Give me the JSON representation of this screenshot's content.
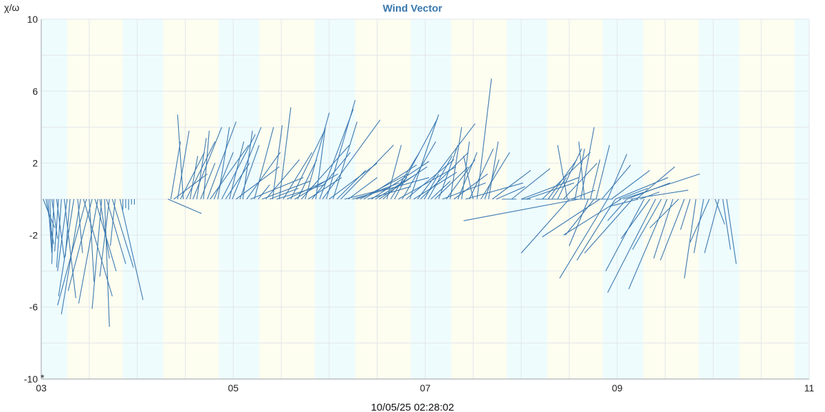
{
  "colors": {
    "vector": "#3a78b0",
    "title": "#3a78b0",
    "grid": "#e2e6ea",
    "day_band": "#fdfdf0",
    "night_band": "#eefcfd",
    "axis": "#9aa0a6"
  },
  "chart_data": {
    "type": "vector",
    "title": "Wind Vector",
    "ylabel": "χ/ω",
    "xlabel": "",
    "x_ticks": [
      "03",
      "05",
      "07",
      "09",
      "11"
    ],
    "x_tick_values": [
      3,
      5,
      7,
      9,
      11
    ],
    "y_ticks": [
      "10",
      "6",
      "2",
      "-2",
      "-6",
      "-10"
    ],
    "y_tick_values": [
      10,
      6,
      2,
      -2,
      -6,
      -10
    ],
    "xlim": [
      3,
      11
    ],
    "ylim": [
      -10,
      10
    ],
    "grid": true,
    "bands": [
      {
        "from": 3.0,
        "to": 3.27,
        "kind": "night"
      },
      {
        "from": 3.27,
        "to": 3.85,
        "kind": "day"
      },
      {
        "from": 3.85,
        "to": 4.27,
        "kind": "night"
      },
      {
        "from": 4.27,
        "to": 4.85,
        "kind": "day"
      },
      {
        "from": 4.85,
        "to": 5.27,
        "kind": "night"
      },
      {
        "from": 5.27,
        "to": 5.85,
        "kind": "day"
      },
      {
        "from": 5.85,
        "to": 6.27,
        "kind": "night"
      },
      {
        "from": 6.27,
        "to": 6.85,
        "kind": "day"
      },
      {
        "from": 6.85,
        "to": 7.27,
        "kind": "night"
      },
      {
        "from": 7.27,
        "to": 7.85,
        "kind": "day"
      },
      {
        "from": 7.85,
        "to": 8.27,
        "kind": "night"
      },
      {
        "from": 8.27,
        "to": 8.85,
        "kind": "day"
      },
      {
        "from": 8.85,
        "to": 9.27,
        "kind": "night"
      },
      {
        "from": 9.27,
        "to": 9.85,
        "kind": "day"
      },
      {
        "from": 9.85,
        "to": 10.27,
        "kind": "night"
      },
      {
        "from": 10.27,
        "to": 10.85,
        "kind": "day"
      },
      {
        "from": 10.85,
        "to": 11.0,
        "kind": "night"
      }
    ],
    "vectors": [
      {
        "x": 3.02,
        "dx": 0.12,
        "dy": -1.6
      },
      {
        "x": 3.05,
        "dx": 0.08,
        "dy": -2.5
      },
      {
        "x": 3.07,
        "dx": 0.04,
        "dy": -3.0
      },
      {
        "x": 3.09,
        "dx": 0.02,
        "dy": -2.7
      },
      {
        "x": 3.11,
        "dx": 0.06,
        "dy": -2.2
      },
      {
        "x": 3.13,
        "dx": -0.02,
        "dy": -3.6
      },
      {
        "x": 3.16,
        "dx": 0.08,
        "dy": -3.3
      },
      {
        "x": 3.18,
        "dx": -0.04,
        "dy": -2.9
      },
      {
        "x": 3.21,
        "dx": -0.05,
        "dy": -3.8
      },
      {
        "x": 3.24,
        "dx": 0.12,
        "dy": -5.5
      },
      {
        "x": 3.27,
        "dx": -0.1,
        "dy": -4.0
      },
      {
        "x": 3.3,
        "dx": -0.05,
        "dy": -3.2
      },
      {
        "x": 3.34,
        "dx": -0.16,
        "dy": -5.4
      },
      {
        "x": 3.38,
        "dx": 0.05,
        "dy": -3.0
      },
      {
        "x": 3.41,
        "dx": -0.2,
        "dy": -6.4
      },
      {
        "x": 3.44,
        "dx": 0.3,
        "dy": -5.4
      },
      {
        "x": 3.47,
        "dx": -0.3,
        "dy": -5.9
      },
      {
        "x": 3.5,
        "dx": 0.05,
        "dy": -4.6
      },
      {
        "x": 3.53,
        "dx": -0.25,
        "dy": -5.1
      },
      {
        "x": 3.56,
        "dx": 0.22,
        "dy": -4.0
      },
      {
        "x": 3.59,
        "dx": -0.2,
        "dy": -5.8
      },
      {
        "x": 3.61,
        "dx": 0.1,
        "dy": -3.3
      },
      {
        "x": 3.63,
        "dx": -0.1,
        "dy": -6.1
      },
      {
        "x": 3.66,
        "dx": 0.05,
        "dy": -7.1
      },
      {
        "x": 3.68,
        "dx": 0.2,
        "dy": -3.6
      },
      {
        "x": 3.71,
        "dx": -0.1,
        "dy": -4.3
      },
      {
        "x": 3.74,
        "dx": 0.22,
        "dy": -3.8
      },
      {
        "x": 3.77,
        "dx": -0.05,
        "dy": -2.6
      },
      {
        "x": 3.82,
        "dx": 0.24,
        "dy": -5.6
      },
      {
        "x": 3.85,
        "dx": 0.0,
        "dy": -0.6
      },
      {
        "x": 3.88,
        "dx": 0.0,
        "dy": -0.5
      },
      {
        "x": 3.91,
        "dx": 0.0,
        "dy": -0.6
      },
      {
        "x": 3.94,
        "dx": 0.0,
        "dy": -0.3
      },
      {
        "x": 3.97,
        "dx": 0.0,
        "dy": -0.3
      },
      {
        "x": 4.32,
        "dx": 0.35,
        "dy": -0.8
      },
      {
        "x": 4.35,
        "dx": 0.1,
        "dy": 3.2
      },
      {
        "x": 4.38,
        "dx": 0.35,
        "dy": 1.4
      },
      {
        "x": 4.42,
        "dx": 0.12,
        "dy": 3.8
      },
      {
        "x": 4.45,
        "dx": 0.25,
        "dy": 2.6
      },
      {
        "x": 4.48,
        "dx": -0.06,
        "dy": 4.7
      },
      {
        "x": 4.51,
        "dx": 0.3,
        "dy": 3.2
      },
      {
        "x": 4.55,
        "dx": 0.08,
        "dy": 2.4
      },
      {
        "x": 4.58,
        "dx": 0.3,
        "dy": 4.0
      },
      {
        "x": 4.62,
        "dx": 0.1,
        "dy": 3.4
      },
      {
        "x": 4.66,
        "dx": 0.15,
        "dy": 2.0
      },
      {
        "x": 4.69,
        "dx": 0.06,
        "dy": 3.8
      },
      {
        "x": 4.73,
        "dx": 0.3,
        "dy": 4.3
      },
      {
        "x": 4.76,
        "dx": 0.4,
        "dy": 3.0
      },
      {
        "x": 4.8,
        "dx": 0.2,
        "dy": 2.6
      },
      {
        "x": 4.84,
        "dx": 0.12,
        "dy": 4.0
      },
      {
        "x": 4.88,
        "dx": 0.35,
        "dy": 3.6
      },
      {
        "x": 4.92,
        "dx": 0.25,
        "dy": 2.0
      },
      {
        "x": 4.96,
        "dx": 0.15,
        "dy": 3.2
      },
      {
        "x": 4.99,
        "dx": 0.3,
        "dy": 4.0
      },
      {
        "x": 5.03,
        "dx": 0.45,
        "dy": 1.8
      },
      {
        "x": 5.07,
        "dx": 0.2,
        "dy": 3.0
      },
      {
        "x": 5.1,
        "dx": 0.1,
        "dy": 3.8
      },
      {
        "x": 5.14,
        "dx": 0.35,
        "dy": 2.6
      },
      {
        "x": 5.18,
        "dx": 0.55,
        "dy": 1.2
      },
      {
        "x": 5.22,
        "dx": 0.2,
        "dy": 4.0
      },
      {
        "x": 5.26,
        "dx": 0.12,
        "dy": 0.8
      },
      {
        "x": 5.3,
        "dx": 0.5,
        "dy": 1.0
      },
      {
        "x": 5.34,
        "dx": 0.35,
        "dy": 2.2
      },
      {
        "x": 5.38,
        "dx": 0.3,
        "dy": 0.6
      },
      {
        "x": 5.41,
        "dx": 0.1,
        "dy": 4.1
      },
      {
        "x": 5.45,
        "dx": 0.5,
        "dy": 0.8
      },
      {
        "x": 5.48,
        "dx": 0.12,
        "dy": 5.1
      },
      {
        "x": 5.52,
        "dx": 0.3,
        "dy": 2.6
      },
      {
        "x": 5.56,
        "dx": 0.4,
        "dy": 1.0
      },
      {
        "x": 5.6,
        "dx": 0.35,
        "dy": 3.8
      },
      {
        "x": 5.64,
        "dx": 0.45,
        "dy": 1.4
      },
      {
        "x": 5.67,
        "dx": 0.2,
        "dy": 2.2
      },
      {
        "x": 5.71,
        "dx": 0.5,
        "dy": 3.0
      },
      {
        "x": 5.75,
        "dx": 0.25,
        "dy": 4.8
      },
      {
        "x": 5.78,
        "dx": 0.35,
        "dy": 1.2
      },
      {
        "x": 5.82,
        "dx": 0.4,
        "dy": 2.6
      },
      {
        "x": 5.86,
        "dx": 0.1,
        "dy": 4.0
      },
      {
        "x": 5.9,
        "dx": 0.35,
        "dy": 5.0
      },
      {
        "x": 5.93,
        "dx": 0.6,
        "dy": 4.4
      },
      {
        "x": 5.97,
        "dx": 0.3,
        "dy": 5.5
      },
      {
        "x": 6.0,
        "dx": 0.5,
        "dy": 2.0
      },
      {
        "x": 6.04,
        "dx": 0.25,
        "dy": 4.3
      },
      {
        "x": 6.08,
        "dx": 0.3,
        "dy": 1.6
      },
      {
        "x": 6.12,
        "dx": 0.55,
        "dy": 3.0
      },
      {
        "x": 6.16,
        "dx": 0.45,
        "dy": 0.6
      },
      {
        "x": 6.2,
        "dx": 0.3,
        "dy": 1.2
      },
      {
        "x": 6.24,
        "dx": 0.8,
        "dy": 1.2
      },
      {
        "x": 6.28,
        "dx": 0.45,
        "dy": 0.9
      },
      {
        "x": 6.32,
        "dx": 0.5,
        "dy": 1.4
      },
      {
        "x": 6.36,
        "dx": 0.55,
        "dy": 1.9
      },
      {
        "x": 6.4,
        "dx": 0.45,
        "dy": 0.7
      },
      {
        "x": 6.44,
        "dx": 0.6,
        "dy": 2.1
      },
      {
        "x": 6.48,
        "dx": 0.4,
        "dy": 1.3
      },
      {
        "x": 6.52,
        "dx": 0.5,
        "dy": 1.8
      },
      {
        "x": 6.56,
        "dx": 0.25,
        "dy": 1.2
      },
      {
        "x": 6.6,
        "dx": 0.15,
        "dy": 3.0
      },
      {
        "x": 6.64,
        "dx": 0.3,
        "dy": 2.6
      },
      {
        "x": 6.68,
        "dx": 0.45,
        "dy": 4.5
      },
      {
        "x": 6.72,
        "dx": 0.6,
        "dy": 1.8
      },
      {
        "x": 6.76,
        "dx": 0.35,
        "dy": 3.2
      },
      {
        "x": 6.8,
        "dx": 0.5,
        "dy": 2.2
      },
      {
        "x": 6.84,
        "dx": 0.3,
        "dy": 4.7
      },
      {
        "x": 6.88,
        "dx": 0.45,
        "dy": 1.5
      },
      {
        "x": 6.92,
        "dx": 0.6,
        "dy": 4.2
      },
      {
        "x": 6.95,
        "dx": 0.5,
        "dy": 2.6
      },
      {
        "x": 6.99,
        "dx": 0.15,
        "dy": 1.4
      },
      {
        "x": 7.03,
        "dx": 0.25,
        "dy": 2.4
      },
      {
        "x": 7.06,
        "dx": 0.2,
        "dy": 1.0
      },
      {
        "x": 7.1,
        "dx": 0.35,
        "dy": 1.8
      },
      {
        "x": 7.14,
        "dx": 0.2,
        "dy": 3.0
      },
      {
        "x": 7.18,
        "dx": 0.45,
        "dy": 0.9
      },
      {
        "x": 7.22,
        "dx": 0.3,
        "dy": 2.2
      },
      {
        "x": 7.26,
        "dx": 0.12,
        "dy": 4.0
      },
      {
        "x": 7.3,
        "dx": 0.35,
        "dy": 1.4
      },
      {
        "x": 7.34,
        "dx": 0.2,
        "dy": 2.6
      },
      {
        "x": 7.38,
        "dx": 0.08,
        "dy": 3.2
      },
      {
        "x": 7.42,
        "dx": 0.6,
        "dy": 0.9
      },
      {
        "x": 7.46,
        "dx": 0.25,
        "dy": 2.8
      },
      {
        "x": 7.5,
        "dx": -0.1,
        "dy": 2.4
      },
      {
        "x": 7.54,
        "dx": 0.15,
        "dy": 6.7
      },
      {
        "x": 7.58,
        "dx": 0.3,
        "dy": 2.6
      },
      {
        "x": 7.62,
        "dx": 0.15,
        "dy": 2.2
      },
      {
        "x": 7.66,
        "dx": 0.1,
        "dy": 3.2
      },
      {
        "x": 7.7,
        "dx": 0.4,
        "dy": 1.6
      },
      {
        "x": 7.74,
        "dx": 0.3,
        "dy": 0.7
      },
      {
        "x": 7.8,
        "dx": 0.15,
        "dy": 0.0
      },
      {
        "x": 7.9,
        "dx": 0.4,
        "dy": 1.7
      },
      {
        "x": 8.0,
        "dx": 0.6,
        "dy": 1.2
      },
      {
        "x": 8.05,
        "dx": 0.5,
        "dy": 0.9
      },
      {
        "x": 8.1,
        "dx": -0.1,
        "dy": 0.0
      },
      {
        "x": 8.15,
        "dx": 0.8,
        "dy": 0.0
      },
      {
        "x": 8.22,
        "dx": 0.5,
        "dy": 2.6
      },
      {
        "x": 8.28,
        "dx": 0.3,
        "dy": 2.2
      },
      {
        "x": 8.32,
        "dx": 0.15,
        "dy": 1.2
      },
      {
        "x": 8.38,
        "dx": 0.25,
        "dy": 2.8
      },
      {
        "x": 8.44,
        "dx": 0.35,
        "dy": 2.0
      },
      {
        "x": 8.48,
        "dx": -0.1,
        "dy": 3.0
      },
      {
        "x": 8.52,
        "dx": 0.25,
        "dy": 0.5
      },
      {
        "x": 8.56,
        "dx": 0.1,
        "dy": 2.8
      },
      {
        "x": 8.62,
        "dx": 0.14,
        "dy": 4.0
      },
      {
        "x": 8.66,
        "dx": -0.06,
        "dy": 3.2
      },
      {
        "x": 8.72,
        "dx": 0.1,
        "dy": 2.2
      },
      {
        "x": 8.78,
        "dx": 0.14,
        "dy": 3.0
      },
      {
        "x": 8.84,
        "dx": 0.3,
        "dy": 1.9
      },
      {
        "x": 8.9,
        "dx": 0.2,
        "dy": 2.5
      },
      {
        "x": 8.94,
        "dx": 0.4,
        "dy": 1.6
      },
      {
        "x": 8.98,
        "dx": 0.55,
        "dy": 1.2
      },
      {
        "x": 9.02,
        "dx": 0.3,
        "dy": 0.6
      },
      {
        "x": 9.06,
        "dx": 0.8,
        "dy": 1.4
      },
      {
        "x": 9.1,
        "dx": 0.45,
        "dy": 0.9
      },
      {
        "x": 9.14,
        "dx": 0.6,
        "dy": 0.5
      },
      {
        "x": 9.2,
        "dx": 0.4,
        "dy": 1.8
      },
      {
        "x": 9.24,
        "dx": 0.2,
        "dy": 0.4
      },
      {
        "x": 8.5,
        "dx": -0.5,
        "dy": -3.0
      },
      {
        "x": 8.6,
        "dx": -1.2,
        "dy": -1.2
      },
      {
        "x": 8.7,
        "dx": -0.2,
        "dy": -2.6
      },
      {
        "x": 8.76,
        "dx": -0.3,
        "dy": -2.0
      },
      {
        "x": 8.82,
        "dx": -0.6,
        "dy": -2.1
      },
      {
        "x": 8.9,
        "dx": -0.5,
        "dy": -4.4
      },
      {
        "x": 8.98,
        "dx": -0.4,
        "dy": -3.4
      },
      {
        "x": 9.04,
        "dx": -0.6,
        "dy": -2.0
      },
      {
        "x": 9.1,
        "dx": -0.2,
        "dy": -1.2
      },
      {
        "x": 9.16,
        "dx": -0.5,
        "dy": -3.0
      },
      {
        "x": 9.22,
        "dx": -0.3,
        "dy": -0.4
      },
      {
        "x": 9.28,
        "dx": -0.4,
        "dy": -4.0
      },
      {
        "x": 9.34,
        "dx": -0.3,
        "dy": -2.2
      },
      {
        "x": 9.4,
        "dx": -0.5,
        "dy": -5.2
      },
      {
        "x": 9.46,
        "dx": -0.3,
        "dy": -2.8
      },
      {
        "x": 9.52,
        "dx": -0.4,
        "dy": -5.0
      },
      {
        "x": 9.58,
        "dx": -0.2,
        "dy": -3.3
      },
      {
        "x": 9.64,
        "dx": -0.3,
        "dy": -1.6
      },
      {
        "x": 9.7,
        "dx": -0.25,
        "dy": -3.4
      },
      {
        "x": 9.76,
        "dx": -0.1,
        "dy": -1.7
      },
      {
        "x": 9.82,
        "dx": -0.12,
        "dy": -4.4
      },
      {
        "x": 9.9,
        "dx": -0.1,
        "dy": -3.0
      },
      {
        "x": 9.96,
        "dx": -0.2,
        "dy": -2.4
      },
      {
        "x": 10.02,
        "dx": 0.1,
        "dy": -1.4
      },
      {
        "x": 10.06,
        "dx": -0.15,
        "dy": -3.0
      },
      {
        "x": 10.1,
        "dx": 0.08,
        "dy": -2.8
      },
      {
        "x": 10.14,
        "dx": 0.1,
        "dy": -3.6
      }
    ]
  },
  "footer": {
    "timestamp": "10/05/25 02:28:02",
    "corner_mark": "*"
  }
}
